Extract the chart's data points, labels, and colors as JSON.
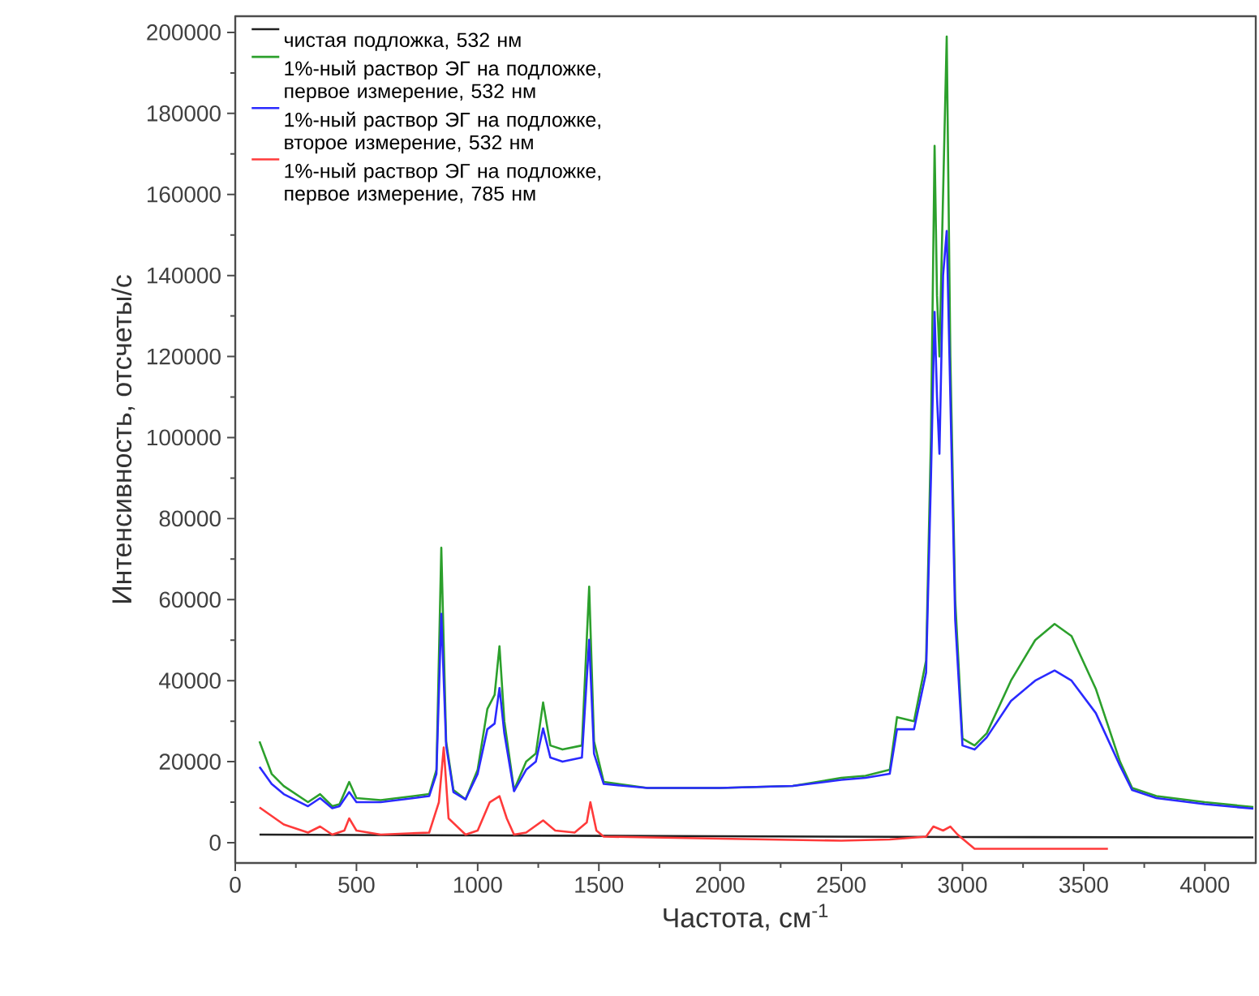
{
  "chart_data": {
    "type": "line",
    "xlabel": "Частота, см$^{-1}$",
    "ylabel": "Интенсивность, отсчеты/с",
    "xlim": [
      0,
      4210
    ],
    "ylim": [
      -5000,
      204000
    ],
    "xticks": [
      0,
      500,
      1000,
      1500,
      2000,
      2500,
      3000,
      3500,
      4000
    ],
    "yticks": [
      0,
      20000,
      40000,
      60000,
      80000,
      100000,
      120000,
      140000,
      160000,
      180000,
      200000
    ],
    "legend": "top left",
    "marker": "none",
    "line_style": "solid",
    "series": [
      {
        "name": "чистая подложка, 532 нм",
        "color": "#202020",
        "x": [
          100,
          1000,
          2000,
          3000,
          4200
        ],
        "values": [
          2000,
          1800,
          1600,
          1400,
          1300
        ]
      },
      {
        "name": "1%-ный раствор ЭГ на подложке, первое измерение, 532 нм",
        "color": "#2ca02c",
        "x": [
          100,
          150,
          200,
          300,
          350,
          400,
          430,
          470,
          500,
          600,
          800,
          830,
          850,
          870,
          900,
          950,
          1000,
          1040,
          1070,
          1090,
          1110,
          1150,
          1200,
          1240,
          1270,
          1300,
          1350,
          1430,
          1460,
          1480,
          1520,
          1700,
          2000,
          2300,
          2500,
          2600,
          2700,
          2730,
          2800,
          2850,
          2870,
          2885,
          2895,
          2905,
          2920,
          2935,
          2950,
          2970,
          3000,
          3050,
          3100,
          3200,
          3300,
          3380,
          3450,
          3550,
          3650,
          3700,
          3800,
          4000,
          4200
        ],
        "values": [
          25000,
          17000,
          14000,
          10000,
          12000,
          9000,
          9500,
          15000,
          11000,
          10500,
          12000,
          18000,
          72800,
          25000,
          13000,
          10700,
          18000,
          33000,
          36500,
          48500,
          30000,
          13000,
          20000,
          22000,
          34600,
          24000,
          23000,
          24000,
          63200,
          25000,
          15000,
          13500,
          13500,
          14000,
          16000,
          16500,
          18000,
          31000,
          30000,
          45000,
          100000,
          172000,
          135000,
          120000,
          160000,
          199000,
          120000,
          60000,
          25700,
          24000,
          27000,
          40000,
          50000,
          54000,
          51000,
          38000,
          20000,
          13500,
          11500,
          10000,
          8800
        ]
      },
      {
        "name": "1%-ный раствор ЭГ на подложке, второе измерение, 532 нм",
        "color": "#2a2aff",
        "x": [
          100,
          150,
          200,
          300,
          350,
          400,
          430,
          470,
          500,
          600,
          800,
          830,
          850,
          870,
          900,
          950,
          1000,
          1040,
          1070,
          1090,
          1110,
          1150,
          1200,
          1240,
          1270,
          1300,
          1350,
          1430,
          1460,
          1480,
          1520,
          1700,
          2000,
          2300,
          2500,
          2600,
          2700,
          2730,
          2800,
          2850,
          2870,
          2885,
          2895,
          2905,
          2920,
          2935,
          2950,
          2970,
          3000,
          3050,
          3100,
          3200,
          3300,
          3380,
          3450,
          3550,
          3650,
          3700,
          3800,
          4000,
          4200
        ],
        "values": [
          18700,
          14500,
          12000,
          9000,
          11000,
          8500,
          9000,
          12500,
          10000,
          10000,
          11500,
          17000,
          56500,
          24000,
          12500,
          10700,
          17000,
          28000,
          29400,
          38200,
          27000,
          12700,
          18000,
          20000,
          28200,
          21000,
          20000,
          21000,
          50100,
          22000,
          14500,
          13500,
          13500,
          14000,
          15500,
          16000,
          17000,
          28000,
          28000,
          42000,
          90000,
          131000,
          110000,
          96000,
          140000,
          151000,
          110000,
          55000,
          24000,
          23000,
          26000,
          35000,
          40000,
          42500,
          40000,
          32000,
          19000,
          13000,
          11000,
          9500,
          8400
        ]
      },
      {
        "name": "1%-ный раствор ЭГ на подложке, первое измерение, 785 нм",
        "color": "#ff3a3a",
        "x": [
          100,
          200,
          300,
          350,
          400,
          450,
          470,
          500,
          600,
          800,
          840,
          860,
          880,
          950,
          1000,
          1050,
          1090,
          1120,
          1150,
          1200,
          1270,
          1320,
          1400,
          1450,
          1465,
          1490,
          1520,
          2000,
          2500,
          2700,
          2850,
          2880,
          2920,
          2950,
          2980,
          3050,
          3600
        ],
        "values": [
          8700,
          4500,
          2500,
          4000,
          2000,
          3000,
          6000,
          3000,
          2000,
          2500,
          10000,
          23500,
          6000,
          2000,
          3000,
          10000,
          11500,
          6000,
          2000,
          2500,
          5500,
          3000,
          2500,
          5000,
          10000,
          3000,
          1500,
          1000,
          500,
          800,
          1500,
          4000,
          3000,
          4000,
          2000,
          -1500,
          -1500
        ]
      }
    ]
  }
}
